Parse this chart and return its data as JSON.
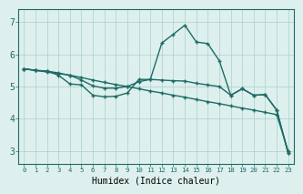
{
  "bg_color": "#ddf0ee",
  "grid_color": "#aacfcc",
  "line_color": "#1e6b65",
  "line1_x": [
    0,
    1,
    2,
    3,
    4,
    5,
    6,
    7,
    8,
    9,
    10,
    11,
    12,
    13,
    14,
    15,
    16,
    17,
    18,
    19,
    20,
    21,
    22,
    23
  ],
  "line1_y": [
    5.55,
    5.5,
    5.45,
    5.4,
    5.35,
    5.28,
    5.2,
    5.13,
    5.06,
    5.0,
    4.93,
    4.86,
    4.8,
    4.73,
    4.67,
    4.6,
    4.53,
    4.47,
    4.4,
    4.33,
    4.27,
    4.2,
    4.13,
    3.0
  ],
  "line2_x": [
    0,
    1,
    2,
    3,
    4,
    5,
    6,
    7,
    8,
    9,
    10,
    11,
    12,
    13,
    14,
    15,
    16,
    17,
    18,
    19,
    20,
    21,
    22,
    23
  ],
  "line2_y": [
    5.55,
    5.5,
    5.48,
    5.42,
    5.35,
    5.2,
    5.02,
    4.95,
    4.95,
    5.0,
    5.15,
    5.22,
    5.2,
    5.18,
    5.17,
    5.1,
    5.05,
    5.0,
    4.73,
    4.93,
    4.73,
    4.75,
    4.27,
    2.93
  ],
  "line3_x": [
    0,
    1,
    2,
    3,
    4,
    5,
    6,
    7,
    8,
    9,
    10,
    11,
    12,
    13,
    14,
    15,
    16,
    17,
    18,
    19,
    20,
    21,
    22,
    23
  ],
  "line3_y": [
    5.55,
    5.5,
    5.48,
    5.35,
    5.08,
    5.05,
    4.73,
    4.68,
    4.7,
    4.8,
    5.22,
    5.22,
    6.35,
    6.62,
    6.9,
    6.38,
    6.33,
    5.8,
    4.73,
    4.93,
    4.73,
    4.75,
    4.27,
    2.93
  ],
  "xlabel": "Humidex (Indice chaleur)",
  "xlim": [
    -0.5,
    23.5
  ],
  "ylim": [
    2.6,
    7.4
  ],
  "yticks": [
    3,
    4,
    5,
    6,
    7
  ],
  "xticks": [
    0,
    1,
    2,
    3,
    4,
    5,
    6,
    7,
    8,
    9,
    10,
    11,
    12,
    13,
    14,
    15,
    16,
    17,
    18,
    19,
    20,
    21,
    22,
    23
  ],
  "xlabel_fontsize": 7,
  "ytick_fontsize": 7,
  "xtick_fontsize": 5.2
}
